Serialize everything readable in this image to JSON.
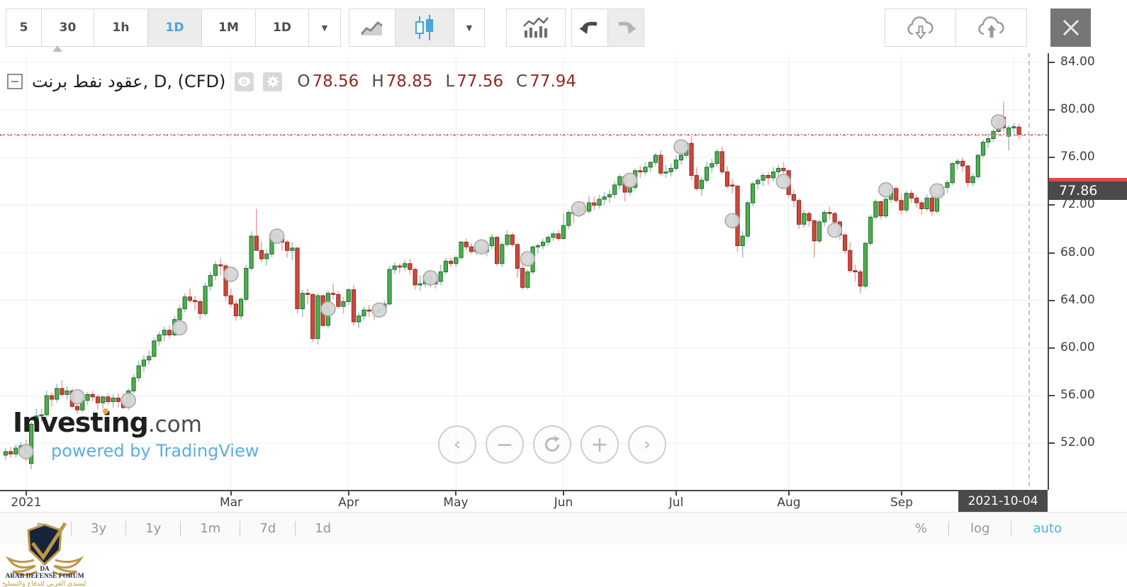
{
  "toolbar": {
    "intervals": [
      "5",
      "30",
      "1h",
      "1D",
      "1M",
      "1D"
    ],
    "active_interval": "1D"
  },
  "header": {
    "symbol": "عقود نفط برنت, D, (CFD)",
    "ohlc": [
      {
        "k": "O",
        "v": "78.56"
      },
      {
        "k": "H",
        "v": "78.85"
      },
      {
        "k": "L",
        "v": "77.56"
      },
      {
        "k": "C",
        "v": "77.94"
      }
    ]
  },
  "price_axis": {
    "crosshair_price": "77.86"
  },
  "time_axis": {
    "crosshair_date": "2021-10-04"
  },
  "bottom_toolbar": {
    "ranges": [
      "5y",
      "3y",
      "1y",
      "1m",
      "7d",
      "1d"
    ],
    "scales": [
      "%",
      "log",
      "auto"
    ],
    "active_scale": "auto"
  },
  "watermark": {
    "brand_a": "Invest",
    "brand_b": "i",
    "brand_c": "ng",
    "tld": ".com",
    "powered": "powered by TradingView"
  },
  "adf_logo": {
    "line1": "ARAB DEFENSE FORUM",
    "line2": "المنتدى العربي للدفاع والتسليح"
  },
  "chart_data": {
    "type": "candlestick",
    "title": "عقود نفط برنت, D, (CFD)",
    "ylim": [
      48.1,
      84.8
    ],
    "grid": true,
    "price_ticks": [
      84,
      80,
      76,
      72,
      68,
      64,
      60,
      56,
      52
    ],
    "month_ticks": [
      {
        "label": "2021",
        "i": 4
      },
      {
        "label": "Mar",
        "i": 44
      },
      {
        "label": "Apr",
        "i": 67
      },
      {
        "label": "May",
        "i": 88
      },
      {
        "label": "Jun",
        "i": 109
      },
      {
        "label": "Jul",
        "i": 131
      },
      {
        "label": "Aug",
        "i": 153
      },
      {
        "label": "Sep",
        "i": 175
      },
      {
        "label": "",
        "i": 197
      }
    ],
    "last_price": 77.94,
    "crosshair": {
      "price": 77.86,
      "date": "2021-10-04",
      "index": 200
    },
    "colors": {
      "up_fill": "#4caf50",
      "up_stroke": "#1f6b23",
      "up_wick": "#a4c0ce",
      "down_fill": "#d0473a",
      "down_stroke": "#8e2a22",
      "down_wick": "#e8a7a7",
      "grid": "#efefef",
      "crosshair": "#a3a3a3",
      "last_price_line": "#e05c54",
      "marker_fill": "#d6d6d6",
      "marker_stroke": "#a6a6a6",
      "accent_blue": "#48a5da"
    },
    "markers": [
      {
        "i": 4,
        "p": 51.3
      },
      {
        "i": 14,
        "p": 55.9
      },
      {
        "i": 24,
        "p": 55.6
      },
      {
        "i": 34,
        "p": 61.7
      },
      {
        "i": 44,
        "p": 66.2
      },
      {
        "i": 53,
        "p": 69.4
      },
      {
        "i": 63,
        "p": 63.3
      },
      {
        "i": 73,
        "p": 63.2
      },
      {
        "i": 83,
        "p": 65.9
      },
      {
        "i": 93,
        "p": 68.5
      },
      {
        "i": 102,
        "p": 67.5
      },
      {
        "i": 112,
        "p": 71.7
      },
      {
        "i": 122,
        "p": 74.1
      },
      {
        "i": 132,
        "p": 76.9
      },
      {
        "i": 142,
        "p": 70.7
      },
      {
        "i": 152,
        "p": 74.0
      },
      {
        "i": 162,
        "p": 69.9
      },
      {
        "i": 172,
        "p": 73.3
      },
      {
        "i": 182,
        "p": 73.2
      },
      {
        "i": 194,
        "p": 79.0
      }
    ],
    "candles": [
      [
        51.0,
        51.6,
        50.6,
        51.3
      ],
      [
        51.3,
        51.7,
        50.8,
        51.1
      ],
      [
        51.1,
        51.9,
        50.8,
        51.6
      ],
      [
        51.6,
        52.1,
        51.2,
        51.8
      ],
      [
        51.8,
        52.3,
        50.5,
        51.1
      ],
      [
        50.3,
        53.8,
        49.8,
        53.6
      ],
      [
        53.6,
        54.9,
        53.2,
        54.3
      ],
      [
        54.3,
        54.9,
        53.8,
        54.4
      ],
      [
        54.4,
        56.4,
        54.2,
        56.0
      ],
      [
        56.0,
        56.3,
        55.1,
        55.7
      ],
      [
        55.7,
        57.0,
        55.4,
        56.6
      ],
      [
        56.6,
        57.3,
        55.9,
        56.1
      ],
      [
        56.1,
        56.8,
        55.7,
        56.4
      ],
      [
        56.4,
        56.6,
        54.9,
        55.1
      ],
      [
        55.1,
        55.5,
        54.5,
        54.8
      ],
      [
        54.8,
        56.0,
        54.6,
        55.6
      ],
      [
        55.6,
        56.3,
        55.2,
        56.1
      ],
      [
        56.1,
        56.4,
        55.5,
        55.9
      ],
      [
        55.9,
        56.1,
        54.8,
        55.4
      ],
      [
        55.4,
        56.0,
        54.9,
        55.9
      ],
      [
        55.9,
        56.2,
        55.2,
        55.5
      ],
      [
        55.5,
        56.1,
        55.0,
        55.8
      ],
      [
        55.8,
        56.2,
        55.0,
        55.5
      ],
      [
        55.5,
        56.2,
        54.9,
        55.0
      ],
      [
        55.0,
        56.6,
        54.8,
        56.4
      ],
      [
        56.4,
        57.8,
        56.2,
        57.5
      ],
      [
        57.5,
        58.9,
        57.2,
        58.5
      ],
      [
        58.5,
        59.4,
        58.0,
        59.0
      ],
      [
        59.0,
        59.8,
        58.6,
        59.3
      ],
      [
        59.3,
        60.9,
        59.2,
        60.6
      ],
      [
        60.6,
        61.4,
        60.2,
        61.1
      ],
      [
        61.1,
        61.8,
        60.6,
        61.5
      ],
      [
        61.5,
        61.9,
        60.8,
        61.1
      ],
      [
        61.1,
        62.7,
        61.0,
        62.4
      ],
      [
        62.4,
        63.6,
        62.2,
        63.3
      ],
      [
        63.3,
        64.6,
        63.0,
        64.3
      ],
      [
        64.3,
        65.0,
        63.8,
        64.0
      ],
      [
        64.0,
        64.4,
        63.2,
        63.9
      ],
      [
        63.9,
        64.1,
        62.4,
        62.9
      ],
      [
        62.9,
        65.5,
        62.7,
        65.2
      ],
      [
        65.2,
        66.4,
        64.8,
        66.1
      ],
      [
        66.1,
        67.3,
        65.7,
        67.0
      ],
      [
        67.0,
        67.5,
        66.1,
        66.9
      ],
      [
        66.9,
        67.1,
        64.0,
        64.4
      ],
      [
        64.4,
        65.0,
        63.4,
        63.7
      ],
      [
        63.7,
        64.0,
        62.3,
        62.7
      ],
      [
        62.7,
        64.3,
        62.4,
        64.1
      ],
      [
        64.1,
        67.0,
        63.9,
        66.7
      ],
      [
        66.7,
        69.8,
        66.5,
        69.4
      ],
      [
        69.4,
        71.7,
        68.9,
        68.2
      ],
      [
        68.2,
        69.0,
        67.2,
        67.5
      ],
      [
        67.5,
        68.3,
        66.9,
        67.9
      ],
      [
        67.9,
        69.9,
        67.6,
        69.6
      ],
      [
        69.6,
        69.9,
        68.8,
        69.2
      ],
      [
        69.2,
        69.5,
        68.2,
        68.9
      ],
      [
        68.9,
        69.1,
        67.6,
        68.2
      ],
      [
        68.2,
        68.9,
        67.4,
        68.4
      ],
      [
        68.4,
        68.5,
        62.9,
        63.3
      ],
      [
        63.3,
        64.9,
        62.6,
        64.6
      ],
      [
        64.6,
        65.0,
        63.7,
        64.5
      ],
      [
        64.5,
        64.6,
        60.5,
        60.8
      ],
      [
        60.8,
        64.6,
        60.3,
        64.4
      ],
      [
        64.4,
        64.5,
        61.8,
        61.9
      ],
      [
        61.9,
        64.8,
        61.7,
        64.6
      ],
      [
        64.6,
        65.4,
        64.1,
        64.5
      ],
      [
        64.5,
        64.8,
        63.3,
        63.5
      ],
      [
        63.5,
        64.3,
        62.9,
        63.9
      ],
      [
        63.9,
        65.0,
        63.6,
        64.9
      ],
      [
        64.9,
        65.3,
        61.9,
        62.2
      ],
      [
        62.2,
        63.0,
        61.7,
        62.7
      ],
      [
        62.7,
        63.5,
        62.3,
        63.2
      ],
      [
        63.2,
        63.6,
        62.6,
        63.1
      ],
      [
        63.1,
        63.3,
        62.4,
        63.0
      ],
      [
        63.0,
        63.6,
        62.7,
        63.3
      ],
      [
        63.3,
        64.0,
        63.0,
        63.7
      ],
      [
        63.7,
        66.9,
        63.6,
        66.6
      ],
      [
        66.6,
        67.2,
        66.2,
        66.9
      ],
      [
        66.9,
        67.1,
        66.3,
        66.8
      ],
      [
        66.8,
        67.4,
        66.5,
        67.1
      ],
      [
        67.1,
        67.5,
        66.2,
        66.6
      ],
      [
        66.6,
        66.8,
        64.9,
        65.3
      ],
      [
        65.3,
        66.1,
        64.8,
        65.4
      ],
      [
        65.4,
        66.3,
        65.1,
        66.1
      ],
      [
        66.1,
        66.4,
        65.1,
        65.4
      ],
      [
        65.4,
        66.0,
        65.0,
        65.6
      ],
      [
        65.6,
        67.0,
        65.3,
        66.4
      ],
      [
        66.4,
        67.6,
        66.2,
        67.3
      ],
      [
        67.3,
        67.6,
        66.8,
        67.1
      ],
      [
        67.1,
        67.8,
        66.8,
        67.6
      ],
      [
        67.6,
        69.0,
        67.4,
        68.9
      ],
      [
        68.9,
        69.2,
        68.2,
        68.5
      ],
      [
        68.5,
        68.8,
        67.9,
        68.1
      ],
      [
        68.1,
        68.6,
        67.8,
        68.3
      ],
      [
        68.3,
        68.8,
        67.9,
        68.1
      ],
      [
        68.1,
        68.9,
        67.7,
        68.6
      ],
      [
        68.6,
        69.6,
        68.3,
        69.3
      ],
      [
        69.3,
        69.4,
        66.9,
        67.1
      ],
      [
        67.1,
        68.9,
        66.8,
        68.7
      ],
      [
        68.7,
        69.9,
        68.5,
        69.5
      ],
      [
        69.5,
        69.7,
        68.5,
        68.7
      ],
      [
        68.7,
        68.8,
        65.9,
        66.7
      ],
      [
        66.7,
        67.0,
        64.9,
        65.1
      ],
      [
        65.1,
        66.6,
        64.9,
        66.4
      ],
      [
        66.4,
        68.6,
        66.2,
        68.5
      ],
      [
        68.5,
        68.8,
        67.9,
        68.6
      ],
      [
        68.6,
        69.2,
        68.3,
        68.9
      ],
      [
        68.9,
        69.5,
        68.6,
        69.3
      ],
      [
        69.3,
        69.8,
        69.0,
        69.6
      ],
      [
        69.6,
        69.9,
        69.0,
        69.2
      ],
      [
        69.2,
        71.3,
        69.1,
        70.3
      ],
      [
        70.3,
        71.6,
        70.0,
        71.4
      ],
      [
        71.4,
        71.6,
        70.5,
        71.3
      ],
      [
        71.3,
        72.2,
        71.0,
        71.9
      ],
      [
        71.9,
        72.3,
        71.2,
        71.5
      ],
      [
        71.5,
        72.8,
        71.3,
        72.2
      ],
      [
        72.2,
        72.7,
        71.6,
        72.0
      ],
      [
        72.0,
        72.9,
        71.7,
        72.5
      ],
      [
        72.5,
        73.1,
        72.0,
        72.7
      ],
      [
        72.7,
        73.3,
        72.2,
        72.9
      ],
      [
        72.9,
        74.0,
        72.6,
        73.7
      ],
      [
        73.7,
        74.6,
        73.3,
        74.4
      ],
      [
        74.4,
        74.5,
        72.3,
        73.1
      ],
      [
        73.1,
        73.8,
        72.8,
        73.5
      ],
      [
        73.5,
        75.1,
        73.2,
        74.9
      ],
      [
        74.9,
        75.3,
        74.3,
        74.8
      ],
      [
        74.8,
        75.6,
        74.5,
        75.2
      ],
      [
        75.2,
        75.7,
        74.8,
        75.6
      ],
      [
        75.6,
        76.4,
        75.3,
        76.2
      ],
      [
        76.2,
        76.6,
        74.5,
        74.7
      ],
      [
        74.7,
        75.4,
        74.3,
        74.8
      ],
      [
        74.8,
        75.5,
        74.4,
        75.1
      ],
      [
        75.1,
        76.2,
        74.9,
        75.8
      ],
      [
        75.8,
        76.5,
        75.4,
        76.2
      ],
      [
        76.2,
        77.4,
        76.0,
        77.2
      ],
      [
        77.2,
        77.8,
        74.1,
        74.5
      ],
      [
        74.5,
        75.2,
        73.2,
        73.4
      ],
      [
        73.4,
        74.4,
        72.8,
        74.1
      ],
      [
        74.1,
        75.6,
        73.9,
        75.2
      ],
      [
        75.2,
        75.9,
        74.7,
        75.5
      ],
      [
        75.5,
        76.7,
        75.2,
        76.5
      ],
      [
        76.5,
        76.9,
        74.6,
        74.8
      ],
      [
        74.8,
        75.3,
        73.4,
        73.6
      ],
      [
        73.7,
        74.2,
        73.0,
        73.6
      ],
      [
        73.6,
        73.7,
        68.1,
        68.6
      ],
      [
        68.6,
        69.8,
        67.6,
        69.4
      ],
      [
        69.4,
        72.4,
        69.2,
        72.2
      ],
      [
        72.2,
        74.0,
        71.9,
        73.8
      ],
      [
        73.8,
        74.3,
        73.3,
        74.1
      ],
      [
        74.1,
        74.7,
        73.6,
        74.5
      ],
      [
        74.5,
        74.8,
        73.7,
        74.3
      ],
      [
        74.3,
        75.2,
        74.0,
        74.8
      ],
      [
        74.8,
        75.4,
        74.4,
        75.1
      ],
      [
        75.1,
        75.6,
        74.6,
        74.9
      ],
      [
        74.9,
        75.0,
        72.6,
        72.9
      ],
      [
        72.9,
        73.3,
        71.8,
        72.4
      ],
      [
        72.4,
        72.6,
        70.0,
        70.4
      ],
      [
        70.4,
        71.6,
        70.1,
        71.3
      ],
      [
        71.3,
        71.5,
        70.2,
        70.7
      ],
      [
        70.7,
        70.8,
        67.6,
        69.0
      ],
      [
        69.0,
        70.8,
        68.8,
        70.6
      ],
      [
        70.6,
        71.6,
        70.2,
        71.4
      ],
      [
        71.4,
        71.9,
        70.8,
        71.3
      ],
      [
        71.3,
        71.5,
        70.2,
        70.6
      ],
      [
        70.6,
        70.7,
        69.1,
        69.5
      ],
      [
        69.5,
        69.7,
        67.9,
        68.2
      ],
      [
        68.2,
        68.9,
        66.3,
        66.5
      ],
      [
        66.5,
        67.0,
        65.6,
        66.4
      ],
      [
        66.4,
        66.6,
        64.6,
        65.2
      ],
      [
        65.2,
        68.9,
        65.0,
        68.8
      ],
      [
        68.8,
        71.2,
        68.6,
        71.0
      ],
      [
        71.0,
        72.5,
        70.8,
        72.3
      ],
      [
        72.3,
        72.4,
        70.8,
        71.1
      ],
      [
        71.1,
        72.7,
        70.9,
        72.5
      ],
      [
        72.5,
        73.6,
        72.2,
        73.4
      ],
      [
        73.4,
        73.6,
        72.2,
        72.4
      ],
      [
        72.4,
        73.0,
        71.2,
        71.6
      ],
      [
        71.6,
        73.2,
        71.4,
        73.0
      ],
      [
        73.0,
        73.3,
        72.2,
        72.6
      ],
      [
        72.6,
        72.9,
        71.8,
        72.2
      ],
      [
        72.2,
        72.4,
        71.2,
        71.7
      ],
      [
        71.7,
        72.9,
        71.5,
        72.6
      ],
      [
        72.6,
        72.8,
        71.1,
        71.5
      ],
      [
        71.5,
        73.1,
        71.3,
        72.9
      ],
      [
        72.9,
        73.8,
        72.6,
        73.5
      ],
      [
        73.5,
        74.1,
        73.0,
        73.9
      ],
      [
        73.9,
        75.6,
        73.7,
        75.5
      ],
      [
        75.5,
        75.9,
        75.0,
        75.7
      ],
      [
        75.7,
        76.0,
        74.8,
        75.3
      ],
      [
        75.3,
        75.4,
        73.5,
        73.9
      ],
      [
        73.9,
        74.7,
        73.6,
        74.4
      ],
      [
        74.4,
        76.3,
        74.2,
        76.2
      ],
      [
        76.2,
        77.5,
        76.0,
        77.3
      ],
      [
        77.3,
        78.0,
        76.8,
        77.6
      ],
      [
        77.6,
        78.4,
        77.3,
        78.2
      ],
      [
        78.2,
        79.5,
        78.0,
        79.3
      ],
      [
        79.4,
        80.7,
        78.2,
        78.5
      ],
      [
        77.8,
        78.7,
        76.6,
        78.5
      ],
      [
        78.5,
        78.9,
        78.1,
        78.6
      ],
      [
        78.56,
        78.85,
        77.56,
        77.94
      ]
    ]
  }
}
